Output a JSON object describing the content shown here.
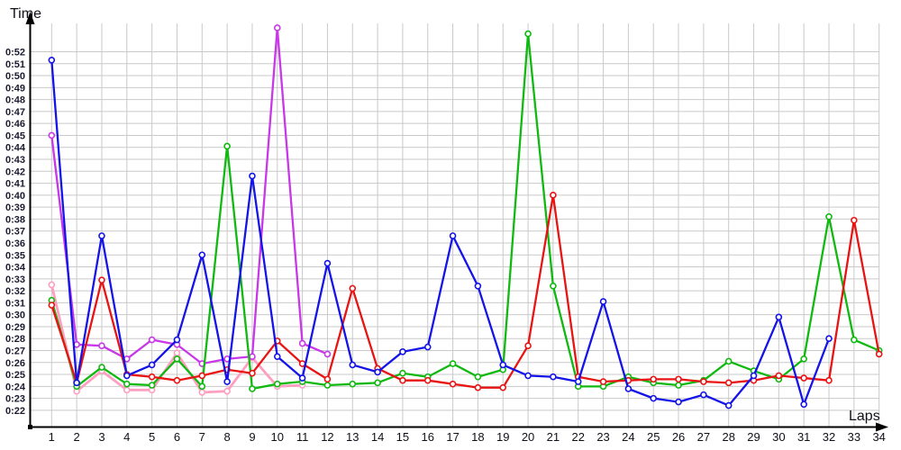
{
  "chart_data": {
    "type": "line",
    "title": "",
    "xlabel": "Laps",
    "ylabel": "Time",
    "x_axis": {
      "label": "Laps",
      "ticks": [
        1,
        2,
        3,
        4,
        5,
        6,
        7,
        8,
        9,
        10,
        11,
        12,
        13,
        14,
        15,
        16,
        17,
        18,
        19,
        20,
        21,
        22,
        23,
        24,
        25,
        26,
        27,
        28,
        29,
        30,
        31,
        32,
        33,
        34
      ]
    },
    "y_axis": {
      "label": "Time",
      "unit": "m:ss",
      "tick_labels": [
        "0:22",
        "0:23",
        "0:24",
        "0:25",
        "0:26",
        "0:27",
        "0:28",
        "0:29",
        "0:30",
        "0:31",
        "0:32",
        "0:33",
        "0:34",
        "0:35",
        "0:36",
        "0:37",
        "0:38",
        "0:39",
        "0:40",
        "0:41",
        "0:42",
        "0:43",
        "0:44",
        "0:45",
        "0:46",
        "0:47",
        "0:48",
        "0:49",
        "0:50",
        "0:51",
        "0:52"
      ],
      "tick_values_seconds": [
        22,
        23,
        24,
        25,
        26,
        27,
        28,
        29,
        30,
        31,
        32,
        33,
        34,
        35,
        36,
        37,
        38,
        39,
        40,
        41,
        42,
        43,
        44,
        45,
        46,
        47,
        48,
        49,
        50,
        51,
        52
      ],
      "range_seconds": [
        22,
        52
      ]
    },
    "grid": true,
    "legend": "none",
    "series": [
      {
        "name": "pink",
        "color": "#FF9EC0",
        "start_lap": 1,
        "values_seconds": [
          32.5,
          23.6,
          25.3,
          23.7,
          23.7,
          26.8,
          23.5,
          23.6,
          26.4,
          24.0,
          24.1
        ]
      },
      {
        "name": "violet",
        "color": "#C837E8",
        "start_lap": 1,
        "values_seconds": [
          45.0,
          27.5,
          27.4,
          26.3,
          27.9,
          27.5,
          25.9,
          26.3,
          26.5,
          54.0,
          27.6,
          26.7
        ]
      },
      {
        "name": "green",
        "color": "#10B910",
        "start_lap": 1,
        "values_seconds": [
          31.2,
          24.0,
          25.6,
          24.2,
          24.1,
          26.3,
          24.0,
          44.1,
          23.8,
          24.2,
          24.4,
          24.1,
          24.2,
          24.3,
          25.1,
          24.8,
          25.9,
          24.8,
          25.4,
          53.5,
          32.4,
          24.0,
          24.0,
          24.8,
          24.3,
          24.1,
          24.5,
          26.1,
          25.3,
          24.6,
          26.3,
          38.2,
          27.9,
          27.0
        ]
      },
      {
        "name": "red",
        "color": "#E81414",
        "start_lap": 1,
        "values_seconds": [
          30.8,
          24.3,
          32.9,
          25.0,
          24.8,
          24.5,
          24.9,
          25.4,
          25.1,
          27.8,
          25.9,
          24.6,
          32.2,
          25.5,
          24.5,
          24.5,
          24.2,
          23.9,
          23.9,
          27.4,
          40.0,
          24.8,
          24.4,
          24.5,
          24.6,
          24.6,
          24.4,
          24.3,
          24.5,
          24.9,
          24.7,
          24.5,
          37.9,
          26.7
        ]
      },
      {
        "name": "blue",
        "color": "#1414E8",
        "start_lap": 1,
        "values_seconds": [
          51.3,
          24.3,
          36.6,
          24.9,
          25.8,
          27.9,
          35.0,
          24.4,
          41.6,
          26.5,
          24.7,
          34.3,
          25.8,
          25.2,
          26.9,
          27.3,
          36.6,
          32.4,
          25.8,
          24.9,
          24.8,
          24.4,
          31.1,
          23.8,
          23.0,
          22.7,
          23.3,
          22.4,
          24.9,
          29.8,
          22.5,
          28.0
        ]
      }
    ]
  }
}
